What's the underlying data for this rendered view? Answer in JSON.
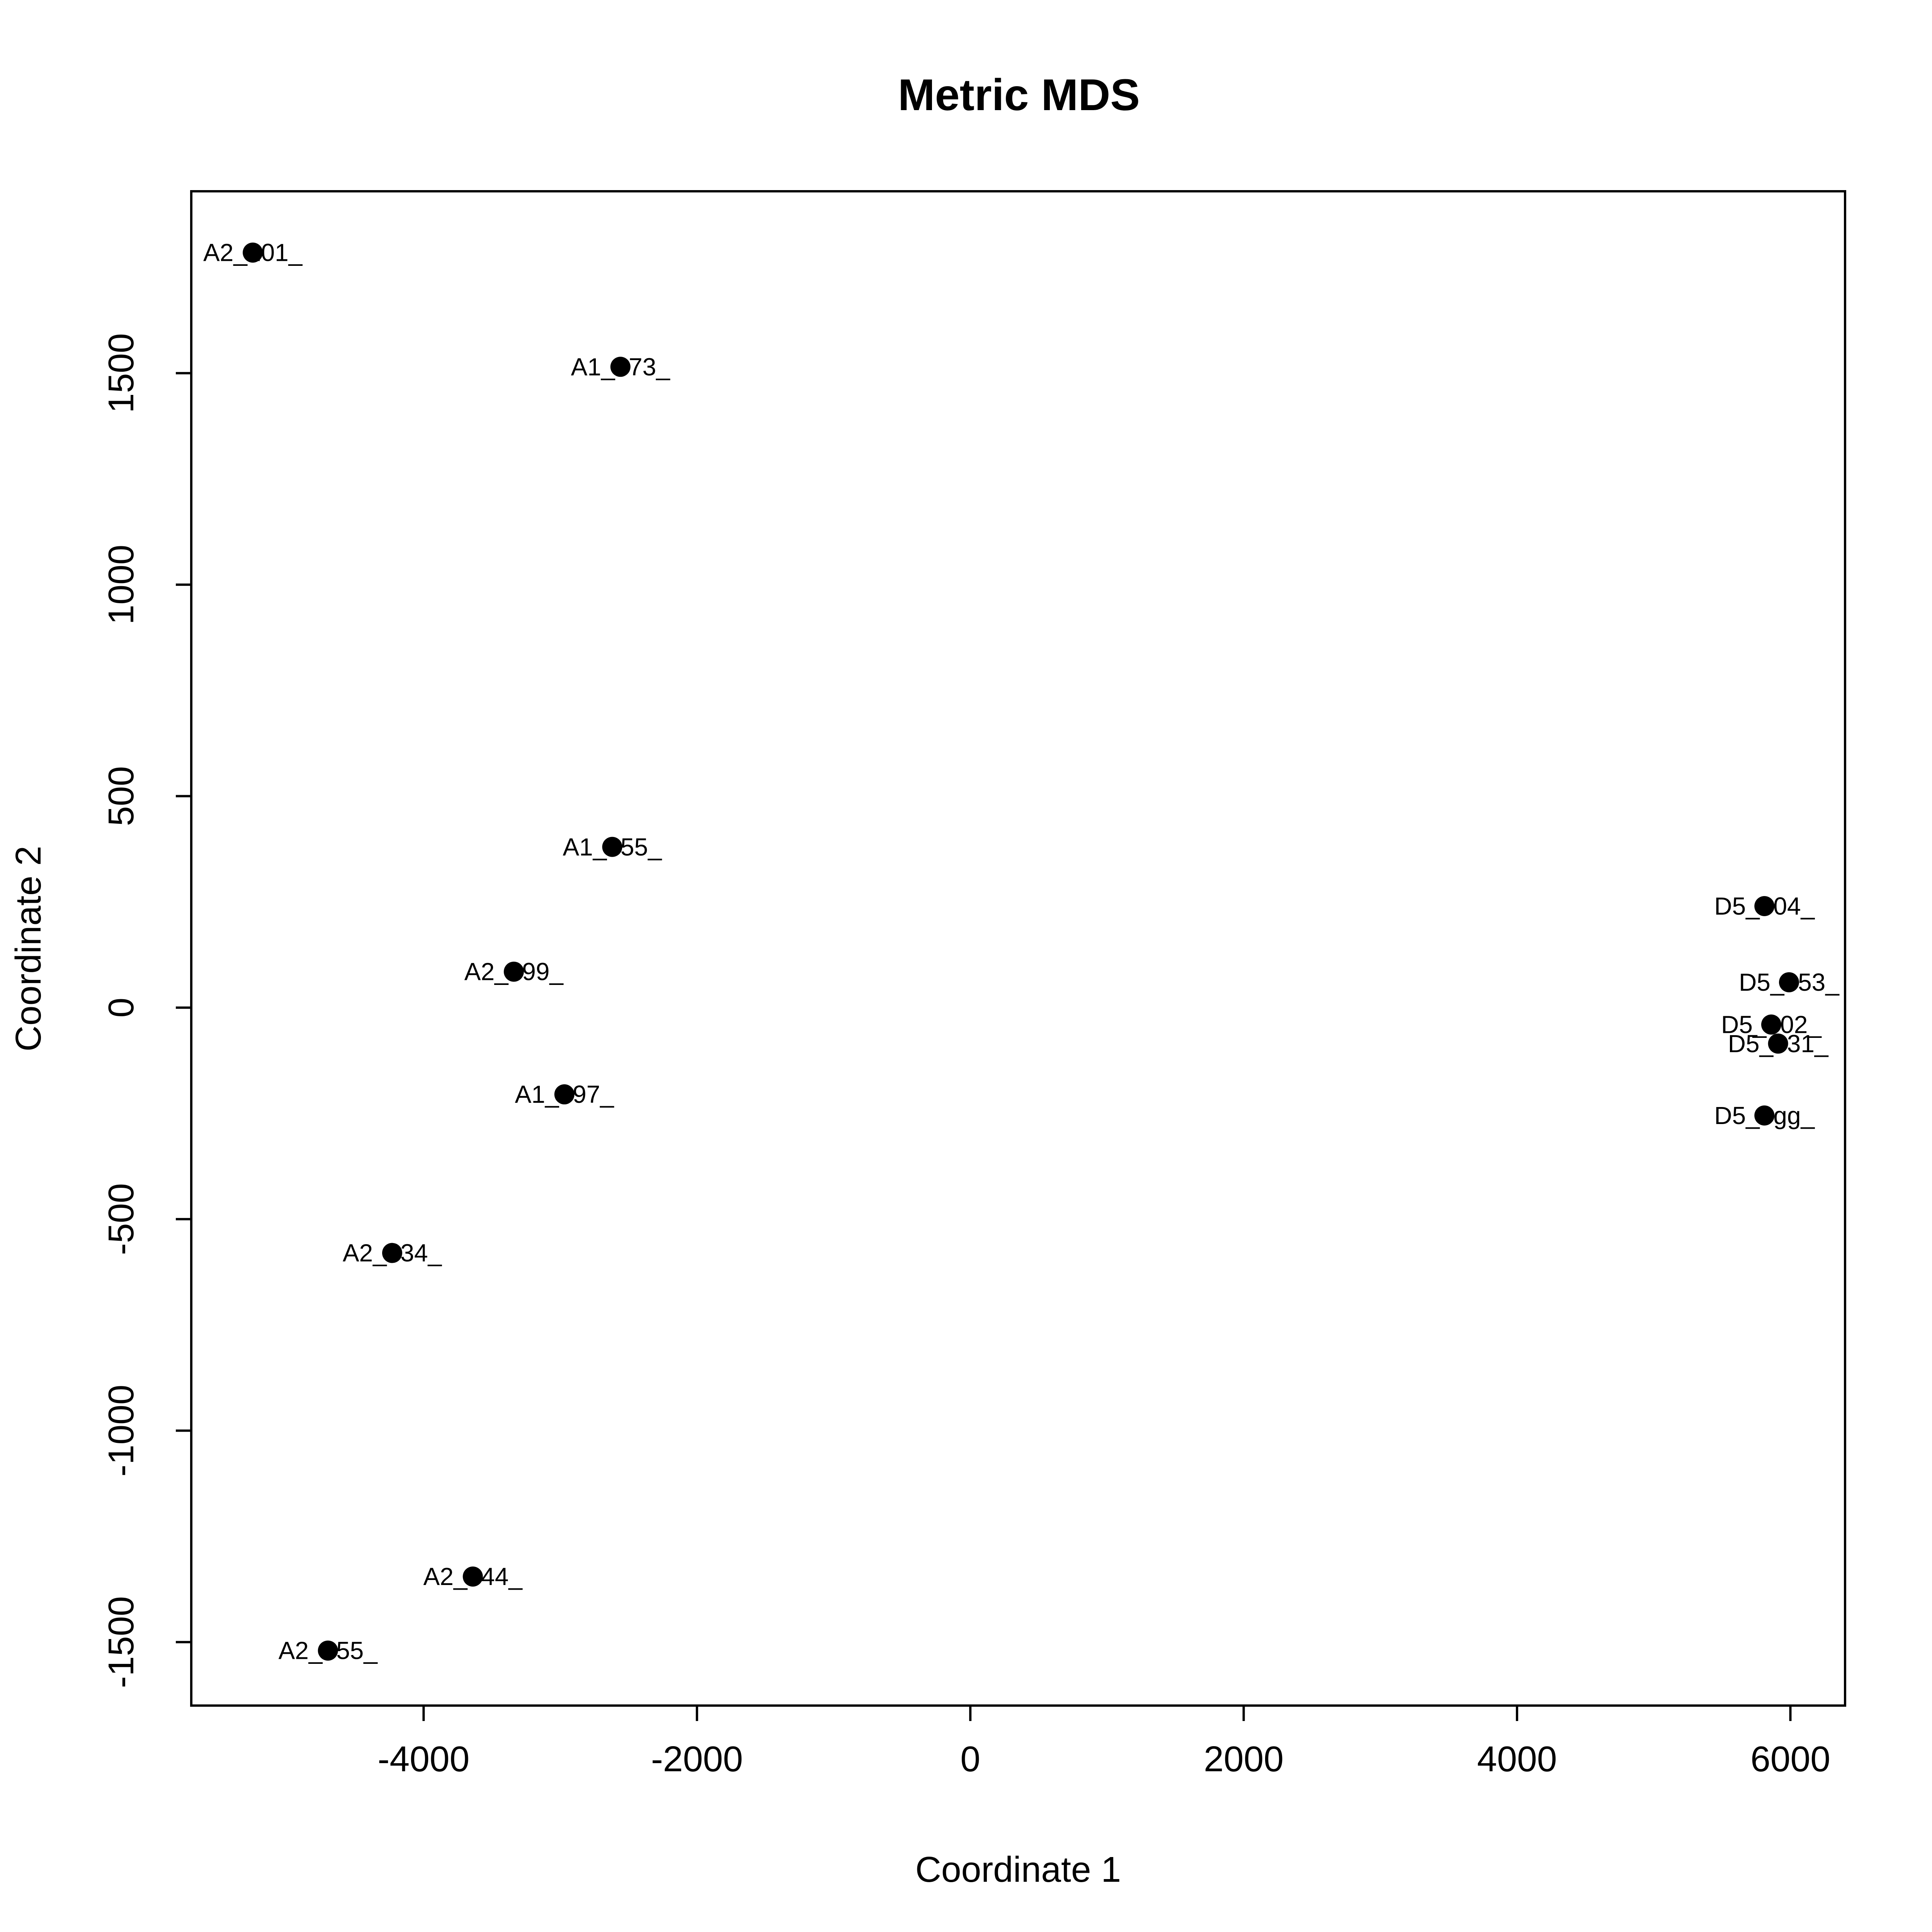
{
  "chart_data": {
    "type": "scatter",
    "title": "Metric MDS",
    "xlabel": "Coordinate 1",
    "ylabel": "Coordinate 2",
    "xlim": [
      -5700,
      6400
    ],
    "ylim": [
      -1650,
      1930
    ],
    "xticks": [
      -4000,
      -2000,
      0,
      2000,
      4000,
      6000
    ],
    "yticks": [
      -1500,
      -1000,
      -500,
      0,
      500,
      1000,
      1500
    ],
    "xtick_labels": [
      "-4000",
      "-2000",
      "0",
      "2000",
      "4000",
      "6000"
    ],
    "ytick_labels": [
      "-1500",
      "-1000",
      "-500",
      "0",
      "500",
      "1000",
      "1500"
    ],
    "grid": false,
    "marker_color": "#000000",
    "points": [
      {
        "label": "A2_101_",
        "x": -5250,
        "y": 1785
      },
      {
        "label": "A1_073_",
        "x": -2560,
        "y": 1515
      },
      {
        "label": "A1_055_",
        "x": -2620,
        "y": 380
      },
      {
        "label": "A2_099_",
        "x": -3340,
        "y": 85
      },
      {
        "label": "A1_097_",
        "x": -2970,
        "y": -205
      },
      {
        "label": "A2_034_",
        "x": -4230,
        "y": -580
      },
      {
        "label": "A2_044_",
        "x": -3640,
        "y": -1345
      },
      {
        "label": "A2_055_",
        "x": -4700,
        "y": -1520
      },
      {
        "label": "D5_004_",
        "x": 5810,
        "y": 240
      },
      {
        "label": "D5_053_",
        "x": 5990,
        "y": 60
      },
      {
        "label": "D5_002_",
        "x": 5860,
        "y": -40
      },
      {
        "label": "D5_031_",
        "x": 5910,
        "y": -85
      },
      {
        "label": "D5_egg_",
        "x": 5810,
        "y": -255
      }
    ]
  }
}
